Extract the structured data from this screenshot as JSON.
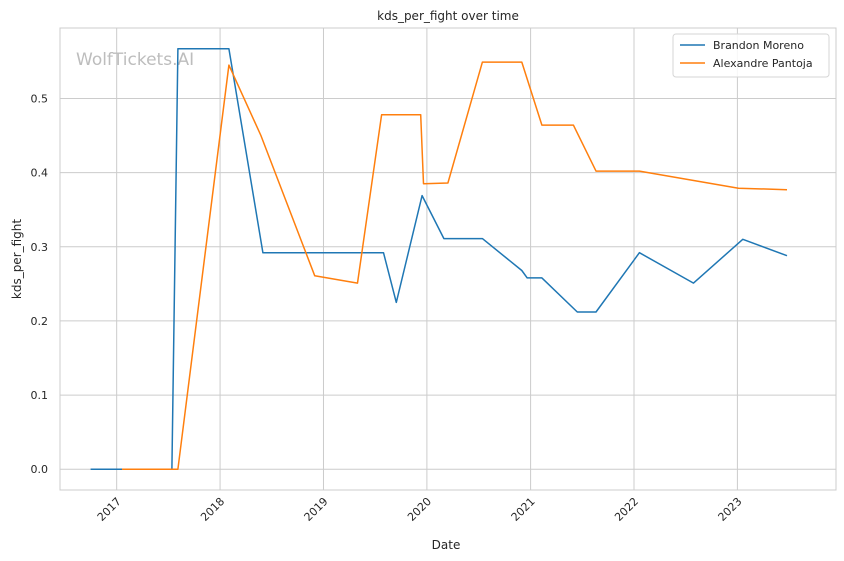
{
  "chart_data": {
    "type": "line",
    "title": "kds_per_fight over time",
    "xlabel": "Date",
    "ylabel": "kds_per_fight",
    "x_ticks": [
      "2017",
      "2018",
      "2019",
      "2020",
      "2021",
      "2022",
      "2023"
    ],
    "y_ticks": [
      "0.0",
      "0.1",
      "0.2",
      "0.3",
      "0.4",
      "0.5"
    ],
    "ylim": [
      -0.028,
      0.595
    ],
    "xlim": [
      "2016-06-15",
      "2023-12-15"
    ],
    "grid": true,
    "legend_position": "top-right",
    "watermark": "WolfTickets.AI",
    "series": [
      {
        "name": "Brandon Moreno",
        "color": "#1f77b4",
        "points": [
          [
            "2016-10-01",
            0.0
          ],
          [
            "2017-01-15",
            0.0
          ],
          [
            "2017-07-15",
            0.0
          ],
          [
            "2017-08-05",
            0.567
          ],
          [
            "2018-02-01",
            0.567
          ],
          [
            "2018-06-01",
            0.292
          ],
          [
            "2019-08-01",
            0.292
          ],
          [
            "2019-09-15",
            0.225
          ],
          [
            "2019-12-15",
            0.369
          ],
          [
            "2020-03-01",
            0.311
          ],
          [
            "2020-07-15",
            0.311
          ],
          [
            "2020-12-01",
            0.268
          ],
          [
            "2020-12-20",
            0.258
          ],
          [
            "2021-02-10",
            0.258
          ],
          [
            "2021-06-15",
            0.212
          ],
          [
            "2021-08-20",
            0.212
          ],
          [
            "2022-01-20",
            0.292
          ],
          [
            "2022-07-30",
            0.251
          ],
          [
            "2023-01-20",
            0.31
          ],
          [
            "2023-06-25",
            0.288
          ]
        ]
      },
      {
        "name": "Alexandre Pantoja",
        "color": "#ff7f0e",
        "points": [
          [
            "2017-01-20",
            0.0
          ],
          [
            "2017-08-05",
            0.0
          ],
          [
            "2018-02-01",
            0.545
          ],
          [
            "2018-05-25",
            0.45
          ],
          [
            "2018-12-01",
            0.261
          ],
          [
            "2019-05-01",
            0.251
          ],
          [
            "2019-07-25",
            0.478
          ],
          [
            "2019-12-10",
            0.478
          ],
          [
            "2019-12-20",
            0.385
          ],
          [
            "2020-03-15",
            0.386
          ],
          [
            "2020-07-15",
            0.549
          ],
          [
            "2020-12-01",
            0.549
          ],
          [
            "2021-02-10",
            0.464
          ],
          [
            "2021-06-01",
            0.464
          ],
          [
            "2021-08-20",
            0.402
          ],
          [
            "2022-01-20",
            0.402
          ],
          [
            "2023-01-05",
            0.379
          ],
          [
            "2023-06-25",
            0.377
          ]
        ]
      }
    ]
  }
}
